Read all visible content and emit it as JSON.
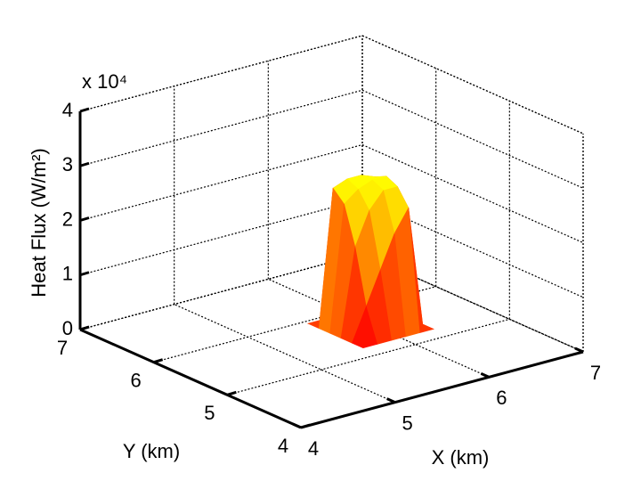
{
  "chart_data": {
    "type": "surface",
    "zlabel": "Heat Flux (W/m²)",
    "xlabel": "X (km)",
    "ylabel": "Y (km)",
    "zexponent": "x 10⁴",
    "x": [
      5.6,
      5.75,
      5.9,
      6.05,
      6.2,
      6.35
    ],
    "y": [
      5.2,
      5.35,
      5.5,
      5.65,
      5.8,
      5.95
    ],
    "z": [
      [
        0,
        0,
        0,
        0,
        0,
        0
      ],
      [
        0,
        0.6,
        1.2,
        1.8,
        2.2,
        0
      ],
      [
        0,
        1.6,
        2.2,
        2.5,
        2.5,
        0
      ],
      [
        0,
        2.3,
        2.5,
        2.6,
        2.6,
        0
      ],
      [
        0,
        2.5,
        2.6,
        2.6,
        2.5,
        0
      ],
      [
        0,
        0,
        0,
        0,
        0,
        0
      ]
    ],
    "colormap": "autumn",
    "xlim": [
      4,
      7
    ],
    "xticks": [
      4,
      5,
      6,
      7
    ],
    "ylim": [
      4,
      7
    ],
    "yticks": [
      4,
      5,
      6,
      7
    ],
    "zlim": [
      0,
      4
    ],
    "zticks": [
      0,
      1,
      2,
      3,
      4
    ],
    "grid": true
  }
}
